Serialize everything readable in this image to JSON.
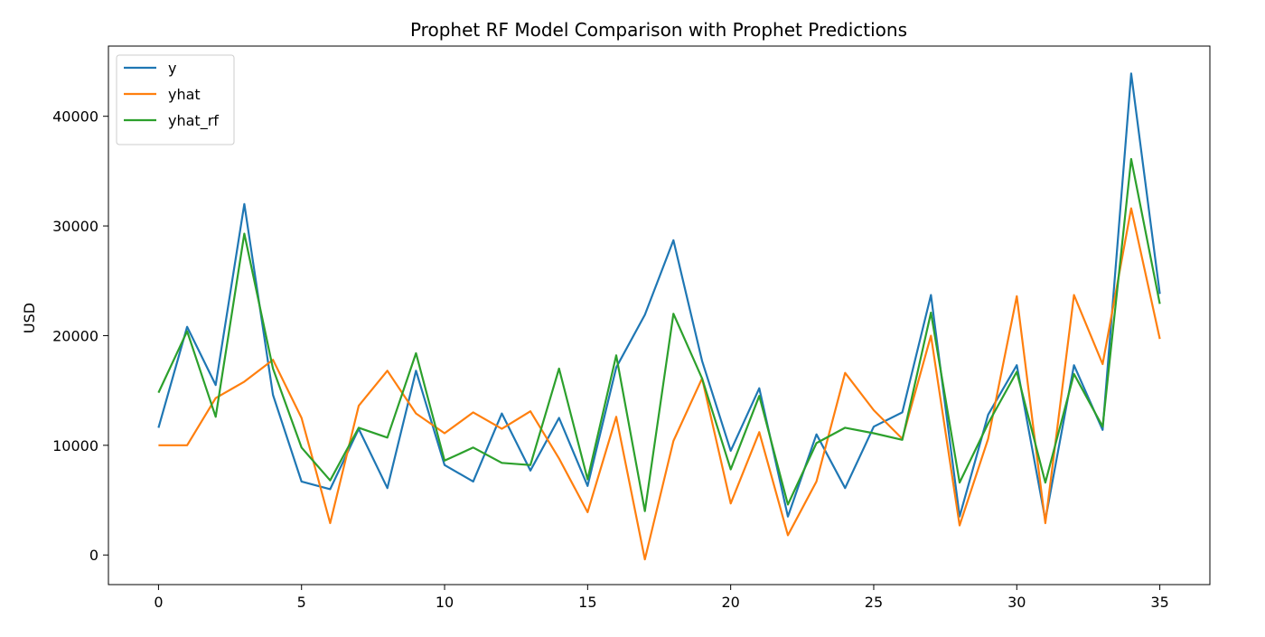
{
  "chart_data": {
    "type": "line",
    "title": "Prophet RF Model Comparison with Prophet Predictions",
    "xlabel": "",
    "ylabel": "USD",
    "xlim": [
      -1.75,
      36.75
    ],
    "ylim": [
      -2700,
      46400
    ],
    "xticks": [
      0,
      5,
      10,
      15,
      20,
      25,
      30,
      35
    ],
    "yticks": [
      0,
      10000,
      20000,
      30000,
      40000
    ],
    "grid": false,
    "legend_position": "upper left",
    "x": [
      0,
      1,
      2,
      3,
      4,
      5,
      6,
      7,
      8,
      9,
      10,
      11,
      12,
      13,
      14,
      15,
      16,
      17,
      18,
      19,
      20,
      21,
      22,
      23,
      24,
      25,
      26,
      27,
      28,
      29,
      30,
      31,
      32,
      33,
      34,
      35
    ],
    "series": [
      {
        "name": "y",
        "color": "#1f77b4",
        "values": [
          11600,
          20800,
          15500,
          32000,
          14600,
          6700,
          6000,
          11500,
          6100,
          16800,
          8200,
          6700,
          12900,
          7700,
          12500,
          6300,
          17100,
          21900,
          28700,
          17700,
          9500,
          15200,
          3500,
          11000,
          6100,
          11700,
          13000,
          23700,
          3500,
          12800,
          17300,
          3200,
          17300,
          11400,
          43900,
          23800
        ]
      },
      {
        "name": "yhat",
        "color": "#ff7f0e",
        "values": [
          10000,
          10000,
          14300,
          15800,
          17800,
          12500,
          2900,
          13600,
          16800,
          12900,
          11100,
          13000,
          11500,
          13100,
          8800,
          3900,
          12600,
          -400,
          10400,
          16100,
          4700,
          11200,
          1800,
          6700,
          16600,
          13200,
          10600,
          20000,
          2700,
          10600,
          23600,
          2900,
          23700,
          17400,
          31600,
          19700
        ]
      },
      {
        "name": "yhat_rf",
        "color": "#2ca02c",
        "values": [
          14800,
          20400,
          12600,
          29300,
          17000,
          9800,
          6800,
          11600,
          10700,
          18400,
          8600,
          9800,
          8400,
          8200,
          17000,
          6900,
          18200,
          4000,
          22000,
          16100,
          7800,
          14500,
          4600,
          10200,
          11600,
          11100,
          10500,
          22100,
          6600,
          12000,
          16700,
          6600,
          16500,
          11700,
          36100,
          22900
        ]
      }
    ]
  }
}
